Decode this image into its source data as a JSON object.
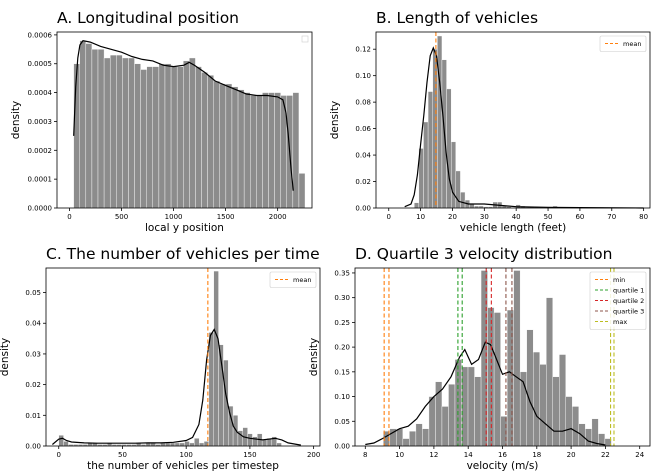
{
  "colors": {
    "bar": "#8c8c8c",
    "kde": "#000000",
    "mean": "#ff7f0e",
    "min": "#ff7f0e",
    "quartile 1": "#2ca02c",
    "quartile 2": "#d62728",
    "quartile 3": "#8c564b",
    "max": "#bcbd22"
  },
  "chart_data": [
    {
      "id": "A",
      "type": "bar",
      "title": "A. Longitudinal position",
      "xlabel": "local y position",
      "ylabel": "density",
      "xlim": [
        -120,
        2330
      ],
      "ylim": [
        0,
        0.00061
      ],
      "xticks": [
        0,
        500,
        1000,
        1500,
        2000
      ],
      "xtick_labels": [
        "0",
        "500",
        "1000",
        "1500",
        "2000"
      ],
      "yticks": [
        0,
        0.0001,
        0.0002,
        0.0003,
        0.0004,
        0.0005,
        0.0006
      ],
      "ytick_labels": [
        "0.0000",
        "0.0001",
        "0.0002",
        "0.0003",
        "0.0004",
        "0.0005",
        "0.0006"
      ],
      "bin_start": 40,
      "bin_width": 58.5,
      "bars": [
        0.0005,
        0.00058,
        0.00057,
        0.00055,
        0.00055,
        0.00052,
        0.00053,
        0.00053,
        0.00052,
        0.00052,
        0.0005,
        0.00048,
        0.00049,
        0.00049,
        0.0005,
        0.0005,
        0.00049,
        0.00049,
        0.00051,
        0.00052,
        0.00049,
        0.00047,
        0.00046,
        0.00044,
        0.00043,
        0.00043,
        0.00042,
        0.00041,
        0.0004,
        0.00039,
        0.00039,
        0.0004,
        0.0004,
        0.0004,
        0.00039,
        0.00039,
        0.0004,
        0.00012
      ],
      "kde": {
        "x": [
          40,
          60,
          80,
          100,
          130,
          200,
          300,
          400,
          500,
          600,
          700,
          800,
          900,
          1000,
          1100,
          1150,
          1200,
          1300,
          1400,
          1500,
          1600,
          1700,
          1800,
          1900,
          2000,
          2050,
          2080,
          2100,
          2130,
          2150
        ],
        "y": [
          0.00025,
          0.00042,
          0.00052,
          0.000565,
          0.00058,
          0.000575,
          0.00056,
          0.00055,
          0.00054,
          0.000525,
          0.000515,
          0.00051,
          0.000495,
          0.00049,
          0.000495,
          0.000505,
          0.000495,
          0.00047,
          0.00044,
          0.000425,
          0.00041,
          0.000395,
          0.00039,
          0.00039,
          0.000385,
          0.000375,
          0.00033,
          0.00026,
          0.00013,
          6e-05
        ]
      },
      "vlines": [],
      "legend": {
        "entries": [],
        "position": "upper right"
      }
    },
    {
      "id": "B",
      "type": "bar",
      "title": "B. Length of vehicles",
      "xlabel": "vehicle length (feet)",
      "ylabel": "density",
      "xlim": [
        -4,
        82
      ],
      "ylim": [
        0,
        0.133
      ],
      "xticks": [
        0,
        10,
        20,
        30,
        40,
        50,
        60,
        70,
        80
      ],
      "xtick_labels": [
        "0",
        "10",
        "20",
        "30",
        "40",
        "50",
        "60",
        "70",
        "80"
      ],
      "yticks": [
        0,
        0.02,
        0.04,
        0.06,
        0.08,
        0.1,
        0.12
      ],
      "ytick_labels": [
        "0.00",
        "0.02",
        "0.04",
        "0.06",
        "0.08",
        "0.10",
        "0.12"
      ],
      "bin_start": 8,
      "bin_width": 1.45,
      "bars": [
        0.004,
        0.045,
        0.065,
        0.088,
        0.12,
        0.13,
        0.112,
        0.09,
        0.05,
        0.028,
        0.012,
        0.006,
        0.003,
        0.0015,
        0.0015,
        0.001,
        0.001,
        0.0045,
        0.0045,
        0.0015,
        0.001,
        0,
        0.0025,
        0.0015,
        0,
        0.001,
        0.001,
        0.0005,
        0.0005,
        0.0005,
        0.0015,
        0.0005,
        0,
        0.0005,
        0,
        0,
        0.0005,
        0,
        0,
        0,
        0.0005
      ],
      "kde": {
        "x": [
          5,
          7,
          8,
          9,
          10,
          11,
          12,
          13,
          14,
          15,
          16,
          17,
          18,
          19,
          20,
          22,
          25,
          30,
          40,
          50,
          60,
          80
        ],
        "y": [
          0.001,
          0.003,
          0.01,
          0.025,
          0.048,
          0.07,
          0.095,
          0.115,
          0.121,
          0.115,
          0.095,
          0.07,
          0.042,
          0.022,
          0.012,
          0.005,
          0.003,
          0.003,
          0.001,
          0.0005,
          0.0003,
          0
        ]
      },
      "vlines": [
        {
          "x": 14.8,
          "label": "mean"
        }
      ],
      "legend": {
        "entries": [
          "mean"
        ],
        "position": "upper right"
      }
    },
    {
      "id": "C",
      "type": "bar",
      "title": "C. The number of vehicles per time",
      "xlabel": "the number of vehicles per timestep",
      "ylabel": "density",
      "xlim": [
        -10,
        205
      ],
      "ylim": [
        0,
        0.058
      ],
      "xticks": [
        0,
        50,
        100,
        150,
        200
      ],
      "xtick_labels": [
        "0",
        "50",
        "100",
        "150",
        "200"
      ],
      "yticks": [
        0,
        0.01,
        0.02,
        0.03,
        0.04,
        0.05
      ],
      "ytick_labels": [
        "0.00",
        "0.01",
        "0.02",
        "0.03",
        "0.04",
        "0.05"
      ],
      "bin_start": 0,
      "bin_width": 3.8,
      "bars": [
        0.0035,
        0.0015,
        0.0005,
        0.0005,
        0.0005,
        0.0005,
        0.001,
        0.001,
        0.0005,
        0.0005,
        0.001,
        0.0005,
        0.0005,
        0.0005,
        0.0005,
        0.0005,
        0.001,
        0.0005,
        0.001,
        0.001,
        0.0005,
        0.001,
        0.001,
        0.001,
        0.001,
        0.001,
        0.0015,
        0.001,
        0.0025,
        0.001,
        0.0015,
        0.037,
        0.057,
        0.033,
        0.028,
        0.013,
        0.01,
        0.005,
        0.006,
        0.004,
        0.003,
        0.004,
        0.002,
        0.0025,
        0.003,
        0.001
      ],
      "kde": {
        "x": [
          -5,
          0,
          3,
          6,
          10,
          20,
          30,
          40,
          50,
          60,
          70,
          80,
          90,
          100,
          105,
          110,
          113,
          116,
          119,
          122,
          125,
          128,
          131,
          134,
          137,
          140,
          145,
          150,
          160,
          170,
          175,
          180,
          190
        ],
        "y": [
          0.0005,
          0.0022,
          0.0025,
          0.0018,
          0.0013,
          0.001,
          0.0009,
          0.0009,
          0.0009,
          0.0009,
          0.001,
          0.001,
          0.0012,
          0.0018,
          0.0028,
          0.007,
          0.015,
          0.028,
          0.036,
          0.038,
          0.035,
          0.026,
          0.017,
          0.011,
          0.0065,
          0.0045,
          0.003,
          0.0025,
          0.002,
          0.0025,
          0.002,
          0.001,
          0.0003
        ]
      },
      "vlines": [
        {
          "x": 117,
          "label": "mean"
        }
      ],
      "legend": {
        "entries": [
          "mean"
        ],
        "position": "upper right"
      }
    },
    {
      "id": "D",
      "type": "bar",
      "title": "D. Quartile 3 velocity distribution",
      "xlabel": "velocity (m/s)",
      "ylabel": "density",
      "xlim": [
        7.4,
        24.6
      ],
      "ylim": [
        0,
        0.36
      ],
      "xticks": [
        8,
        10,
        12,
        14,
        16,
        18,
        20,
        22,
        24
      ],
      "xtick_labels": [
        "8",
        "10",
        "12",
        "14",
        "16",
        "18",
        "20",
        "22",
        "24"
      ],
      "yticks": [
        0,
        0.05,
        0.1,
        0.15,
        0.2,
        0.25,
        0.3,
        0.35
      ],
      "ytick_labels": [
        "0.00",
        "0.05",
        "0.10",
        "0.15",
        "0.20",
        "0.25",
        "0.30",
        "0.35"
      ],
      "bin_start": 9.05,
      "bin_width": 0.38,
      "bars": [
        0.03,
        0.035,
        0.035,
        0.015,
        0.03,
        0.045,
        0.035,
        0.1,
        0.13,
        0.08,
        0.125,
        0.175,
        0.16,
        0.16,
        0.14,
        0.355,
        0.28,
        0.27,
        0.06,
        0.275,
        0.355,
        0.15,
        0.235,
        0.19,
        0.165,
        0.3,
        0.14,
        0.185,
        0.1,
        0.08,
        0.045,
        0.035,
        0.055,
        0.025,
        0.015
      ],
      "kde": {
        "x": [
          8,
          8.5,
          9,
          9.5,
          10,
          10.5,
          11,
          11.5,
          12,
          12.5,
          13,
          13.5,
          13.8,
          14.2,
          14.6,
          15,
          15.3,
          15.6,
          16,
          16.4,
          16.8,
          17.2,
          17.6,
          18,
          18.5,
          19,
          19.5,
          20,
          20.5,
          21,
          21.5,
          22
        ],
        "y": [
          0.003,
          0.006,
          0.015,
          0.025,
          0.035,
          0.04,
          0.055,
          0.08,
          0.1,
          0.115,
          0.14,
          0.18,
          0.195,
          0.165,
          0.175,
          0.21,
          0.205,
          0.18,
          0.145,
          0.15,
          0.14,
          0.13,
          0.09,
          0.06,
          0.045,
          0.03,
          0.03,
          0.035,
          0.025,
          0.01,
          0.005,
          0.002
        ]
      },
      "vlines": [
        {
          "x": 9.1,
          "label": "min"
        },
        {
          "x": 9.38,
          "label": "min"
        },
        {
          "x": 13.4,
          "label": "quartile 1"
        },
        {
          "x": 13.65,
          "label": "quartile 1"
        },
        {
          "x": 15.05,
          "label": "quartile 2"
        },
        {
          "x": 15.35,
          "label": "quartile 2"
        },
        {
          "x": 16.2,
          "label": "quartile 3"
        },
        {
          "x": 16.55,
          "label": "quartile 3"
        },
        {
          "x": 22.3,
          "label": "max"
        },
        {
          "x": 22.5,
          "label": "max"
        }
      ],
      "legend": {
        "entries": [
          "min",
          "quartile 1",
          "quartile 2",
          "quartile 3",
          "max"
        ],
        "position": "upper right"
      }
    }
  ]
}
